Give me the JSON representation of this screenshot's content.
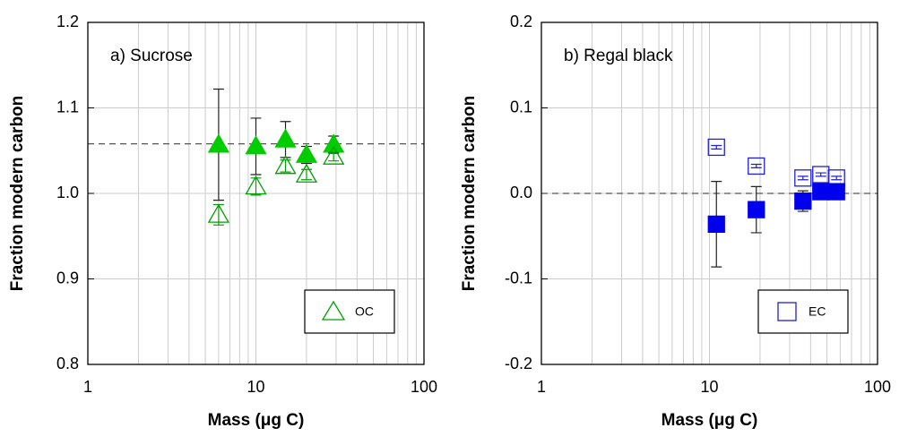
{
  "chart_data": [
    {
      "type": "scatter",
      "annotation": "a) Sucrose",
      "xlabel": "Mass (μg C)",
      "ylabel": "Fraction modern carbon",
      "xlim": [
        1,
        100
      ],
      "xticks": [
        1,
        10,
        100
      ],
      "xscale": "log",
      "ylim": [
        0.8,
        1.2
      ],
      "yticks": [
        0.8,
        0.9,
        {
          "value": 1,
          "label": "1.0"
        },
        1.1,
        1.2
      ],
      "grid": true,
      "reference_line": 1.058,
      "legend": "lower right",
      "series": [
        {
          "marker": "triangle",
          "filled": true,
          "color": "#00cc00",
          "x": [
            6,
            10,
            15,
            20,
            29
          ],
          "values": [
            1.057,
            1.055,
            1.063,
            1.045,
            1.057
          ],
          "errors": [
            0.065,
            0.033,
            0.021,
            0.01,
            0.01
          ]
        },
        {
          "name": "OC",
          "marker": "triangle",
          "filled": false,
          "color": "#00a000",
          "x": [
            6,
            10,
            15,
            20,
            29
          ],
          "values": [
            0.975,
            1.008,
            1.032,
            1.022,
            1.043
          ],
          "errors": [
            0.012,
            0.01,
            0.007,
            0.006,
            0.005
          ]
        }
      ]
    },
    {
      "type": "scatter",
      "annotation": "b) Regal black",
      "xlabel": "Mass (μg C)",
      "ylabel": "Fraction modern carbon",
      "xlim": [
        1,
        100
      ],
      "xticks": [
        1,
        10,
        100
      ],
      "xscale": "log",
      "ylim": [
        -0.2,
        0.2
      ],
      "yticks": [
        -0.2,
        -0.1,
        {
          "value": 0,
          "label": "0.0"
        },
        0.1,
        0.2
      ],
      "grid": true,
      "reference_line": 0,
      "legend": "lower right",
      "series": [
        {
          "name": "EC",
          "marker": "square",
          "filled": false,
          "color": "#2020cc",
          "x": [
            11,
            19,
            36,
            46,
            57
          ],
          "values": [
            0.054,
            0.032,
            0.018,
            0.022,
            0.018
          ],
          "errors": [
            0.002,
            0.002,
            0.002,
            0.002,
            0.002
          ]
        },
        {
          "marker": "square",
          "filled": true,
          "color": "#0000ee",
          "x": [
            11,
            19,
            36,
            46,
            57
          ],
          "values": [
            -0.036,
            -0.019,
            -0.009,
            0.002,
            0.002
          ],
          "errors": [
            0.05,
            0.027,
            0.012,
            0.005,
            0.004
          ]
        }
      ]
    }
  ]
}
